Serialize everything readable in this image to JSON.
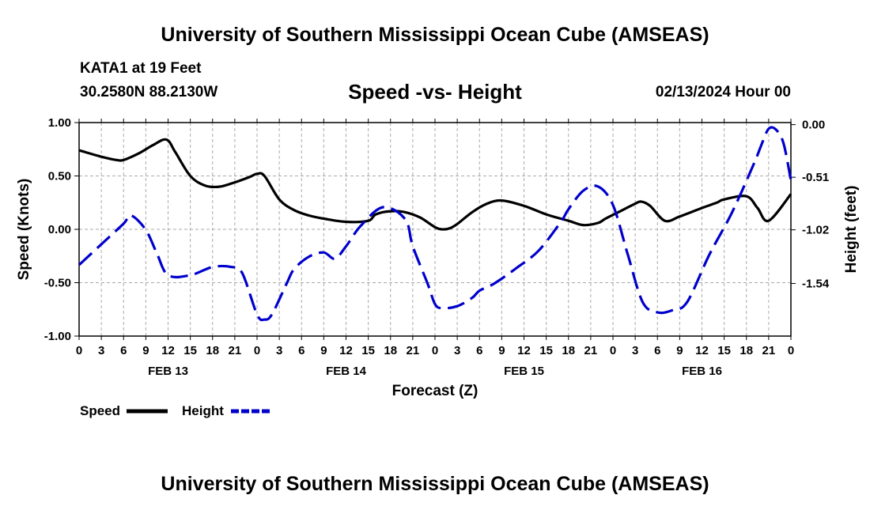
{
  "header": {
    "title": "University of Southern Mississippi Ocean Cube (AMSEAS)",
    "station": "KATA1 at 19 Feet",
    "coords": "30.2580N  88.2130W",
    "subtitle": "Speed -vs- Height",
    "datetime": "02/13/2024 Hour 00"
  },
  "footer": {
    "title": "University of Southern Mississippi Ocean Cube (AMSEAS)"
  },
  "chart_data": {
    "type": "line",
    "title": "Speed -vs- Height",
    "xlabel": "Forecast (Z)",
    "ylabel_left": "Speed (Knots)",
    "ylabel_right": "Height (feet)",
    "x_unit": "hours since 02/13/2024 00Z",
    "xlim": [
      0,
      96
    ],
    "ylim_left": [
      -1.0,
      1.0
    ],
    "ylim_right": [
      -2.05,
      0.02
    ],
    "x_tick_values": [
      0,
      3,
      6,
      9,
      12,
      15,
      18,
      21,
      24,
      27,
      30,
      33,
      36,
      39,
      42,
      45,
      48,
      51,
      54,
      57,
      60,
      63,
      66,
      69,
      72,
      75,
      78,
      81,
      84,
      87,
      90,
      93,
      96
    ],
    "x_tick_labels": [
      "0",
      "3",
      "6",
      "9",
      "12",
      "15",
      "18",
      "21",
      "0",
      "3",
      "6",
      "9",
      "12",
      "15",
      "18",
      "21",
      "0",
      "3",
      "6",
      "9",
      "12",
      "15",
      "18",
      "21",
      "0",
      "3",
      "6",
      "9",
      "12",
      "15",
      "18",
      "21",
      "0"
    ],
    "day_labels": [
      {
        "x": 12,
        "label": "FEB 13"
      },
      {
        "x": 36,
        "label": "FEB 14"
      },
      {
        "x": 60,
        "label": "FEB 15"
      },
      {
        "x": 84,
        "label": "FEB 16"
      }
    ],
    "y_left_ticks": [
      {
        "value": 1.0,
        "label": "1.00"
      },
      {
        "value": 0.5,
        "label": "0.50"
      },
      {
        "value": 0.0,
        "label": "0.00"
      },
      {
        "value": -0.5,
        "label": "-0.50"
      },
      {
        "value": -1.0,
        "label": "-1.00"
      }
    ],
    "y_right_ticks": [
      {
        "value": 0.0,
        "label": "0.00"
      },
      {
        "value": -0.51,
        "label": "-0.51"
      },
      {
        "value": -1.02,
        "label": "-1.02"
      },
      {
        "value": -1.54,
        "label": "-1.54"
      }
    ],
    "series": [
      {
        "name": "Speed",
        "axis": "left",
        "color": "#000000",
        "dash": "solid",
        "x": [
          0,
          3,
          5,
          6,
          8,
          10,
          11.8,
          13,
          15,
          17,
          19,
          21,
          23,
          24,
          25,
          27,
          29,
          31,
          33,
          36,
          39,
          40,
          42,
          44,
          46,
          48,
          49,
          50,
          51,
          53,
          55,
          57,
          60,
          63,
          66,
          68,
          70,
          71,
          73,
          75,
          75.8,
          77,
          79,
          81,
          84,
          86,
          87,
          90,
          91.5,
          93,
          96
        ],
        "values": [
          0.74,
          0.68,
          0.65,
          0.65,
          0.71,
          0.79,
          0.84,
          0.72,
          0.5,
          0.41,
          0.4,
          0.44,
          0.49,
          0.52,
          0.5,
          0.28,
          0.18,
          0.13,
          0.1,
          0.07,
          0.08,
          0.14,
          0.17,
          0.16,
          0.11,
          0.02,
          0.0,
          0.01,
          0.05,
          0.16,
          0.24,
          0.27,
          0.22,
          0.14,
          0.08,
          0.04,
          0.06,
          0.1,
          0.17,
          0.24,
          0.26,
          0.22,
          0.08,
          0.12,
          0.2,
          0.25,
          0.28,
          0.31,
          0.2,
          0.08,
          0.33
        ]
      },
      {
        "name": "Height",
        "axis": "right",
        "color": "#0000cc",
        "dash": "dashed",
        "x": [
          0,
          3,
          6,
          7,
          9,
          10.5,
          12,
          15,
          18,
          20.5,
          22,
          24,
          25,
          26,
          28,
          29,
          31,
          33,
          34.5,
          36,
          38,
          41,
          44,
          45,
          47,
          48,
          49,
          51,
          53,
          54,
          56,
          59,
          62,
          65,
          66,
          68,
          70,
          72,
          74,
          76,
          78,
          80,
          82,
          85,
          88,
          91,
          92,
          93,
          94,
          95,
          96
        ],
        "values": [
          -1.36,
          -1.16,
          -0.96,
          -0.88,
          -1.02,
          -1.25,
          -1.46,
          -1.46,
          -1.38,
          -1.38,
          -1.44,
          -1.84,
          -1.89,
          -1.84,
          -1.54,
          -1.4,
          -1.28,
          -1.24,
          -1.3,
          -1.18,
          -0.98,
          -0.8,
          -0.92,
          -1.18,
          -1.54,
          -1.74,
          -1.78,
          -1.76,
          -1.68,
          -1.61,
          -1.54,
          -1.39,
          -1.22,
          -0.94,
          -0.82,
          -0.64,
          -0.6,
          -0.78,
          -1.26,
          -1.72,
          -1.82,
          -1.8,
          -1.72,
          -1.26,
          -0.86,
          -0.38,
          -0.2,
          -0.04,
          -0.05,
          -0.18,
          -0.54
        ]
      }
    ],
    "legend": [
      {
        "label": "Speed",
        "color": "#000000",
        "dash": "solid"
      },
      {
        "label": "Height",
        "color": "#0000cc",
        "dash": "dashed"
      }
    ],
    "grid": true
  }
}
